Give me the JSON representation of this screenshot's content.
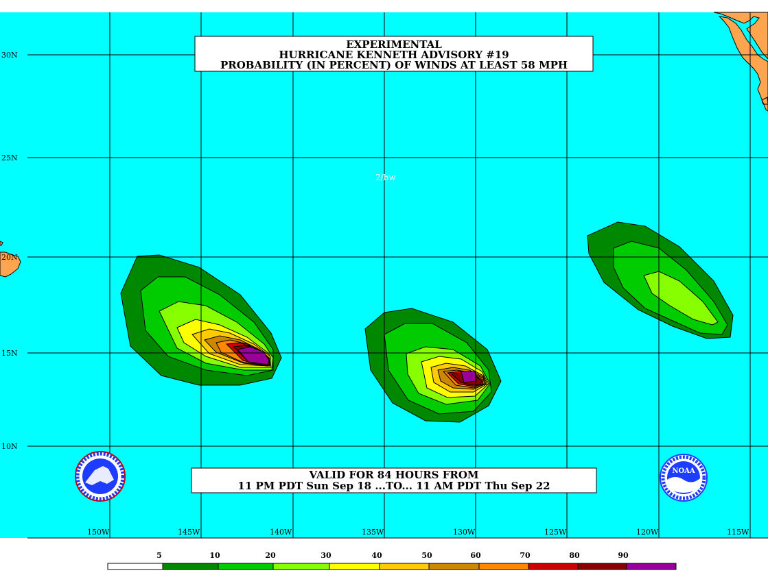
{
  "title": {
    "line1": "EXPERIMENTAL",
    "line2": "HURRICANE KENNETH ADVISORY #19",
    "line3": "PROBABILITY (IN PERCENT) OF WINDS AT LEAST 58 MPH"
  },
  "valid": {
    "line1": "VALID FOR 84 HOURS FROM",
    "line2": "11 PM PDT Sun Sep 18 ...TO... 11 AM PDT Thu Sep 22"
  },
  "map_note": "2/hw",
  "latitude_labels": [
    "30N",
    "25N",
    "20N",
    "15N",
    "10N"
  ],
  "longitude_labels": [
    "150W",
    "145W",
    "140W",
    "135W",
    "130W",
    "125W",
    "120W",
    "115W"
  ],
  "colors": {
    "ocean": "#00ffff",
    "land": "#ffa54f",
    "logo_blue": "#1e3cff"
  },
  "logos": {
    "left": "nws-pacific-region-logo",
    "right": "noaa-logo",
    "right_text": "NOAA"
  },
  "scale": {
    "labels": [
      "5",
      "10",
      "20",
      "30",
      "40",
      "50",
      "60",
      "70",
      "80",
      "90"
    ],
    "colors": [
      "#ffffff",
      "#008800",
      "#00cc00",
      "#88ff00",
      "#ffff00",
      "#ffcc00",
      "#cc8800",
      "#ff8800",
      "#cc0000",
      "#880000",
      "#990099"
    ]
  }
}
